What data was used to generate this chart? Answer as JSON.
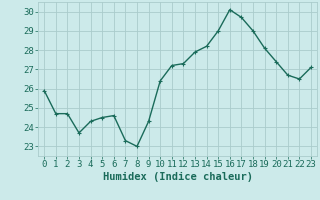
{
  "x": [
    0,
    1,
    2,
    3,
    4,
    5,
    6,
    7,
    8,
    9,
    10,
    11,
    12,
    13,
    14,
    15,
    16,
    17,
    18,
    19,
    20,
    21,
    22,
    23
  ],
  "y": [
    25.9,
    24.7,
    24.7,
    23.7,
    24.3,
    24.5,
    24.6,
    23.3,
    23.0,
    24.3,
    26.4,
    27.2,
    27.3,
    27.9,
    28.2,
    29.0,
    30.1,
    29.7,
    29.0,
    28.1,
    27.4,
    26.7,
    26.5,
    27.1
  ],
  "line_color": "#1a6b5a",
  "marker": "+",
  "marker_size": 3,
  "bg_color": "#cceaea",
  "grid_color": "#aacccc",
  "xlabel": "Humidex (Indice chaleur)",
  "ylim": [
    22.5,
    30.5
  ],
  "xlim": [
    -0.5,
    23.5
  ],
  "yticks": [
    23,
    24,
    25,
    26,
    27,
    28,
    29,
    30
  ],
  "xticks": [
    0,
    1,
    2,
    3,
    4,
    5,
    6,
    7,
    8,
    9,
    10,
    11,
    12,
    13,
    14,
    15,
    16,
    17,
    18,
    19,
    20,
    21,
    22,
    23
  ],
  "line_width": 1.0,
  "font_color": "#1a6b5a",
  "font_size": 6.5,
  "xlabel_fontsize": 7.5
}
